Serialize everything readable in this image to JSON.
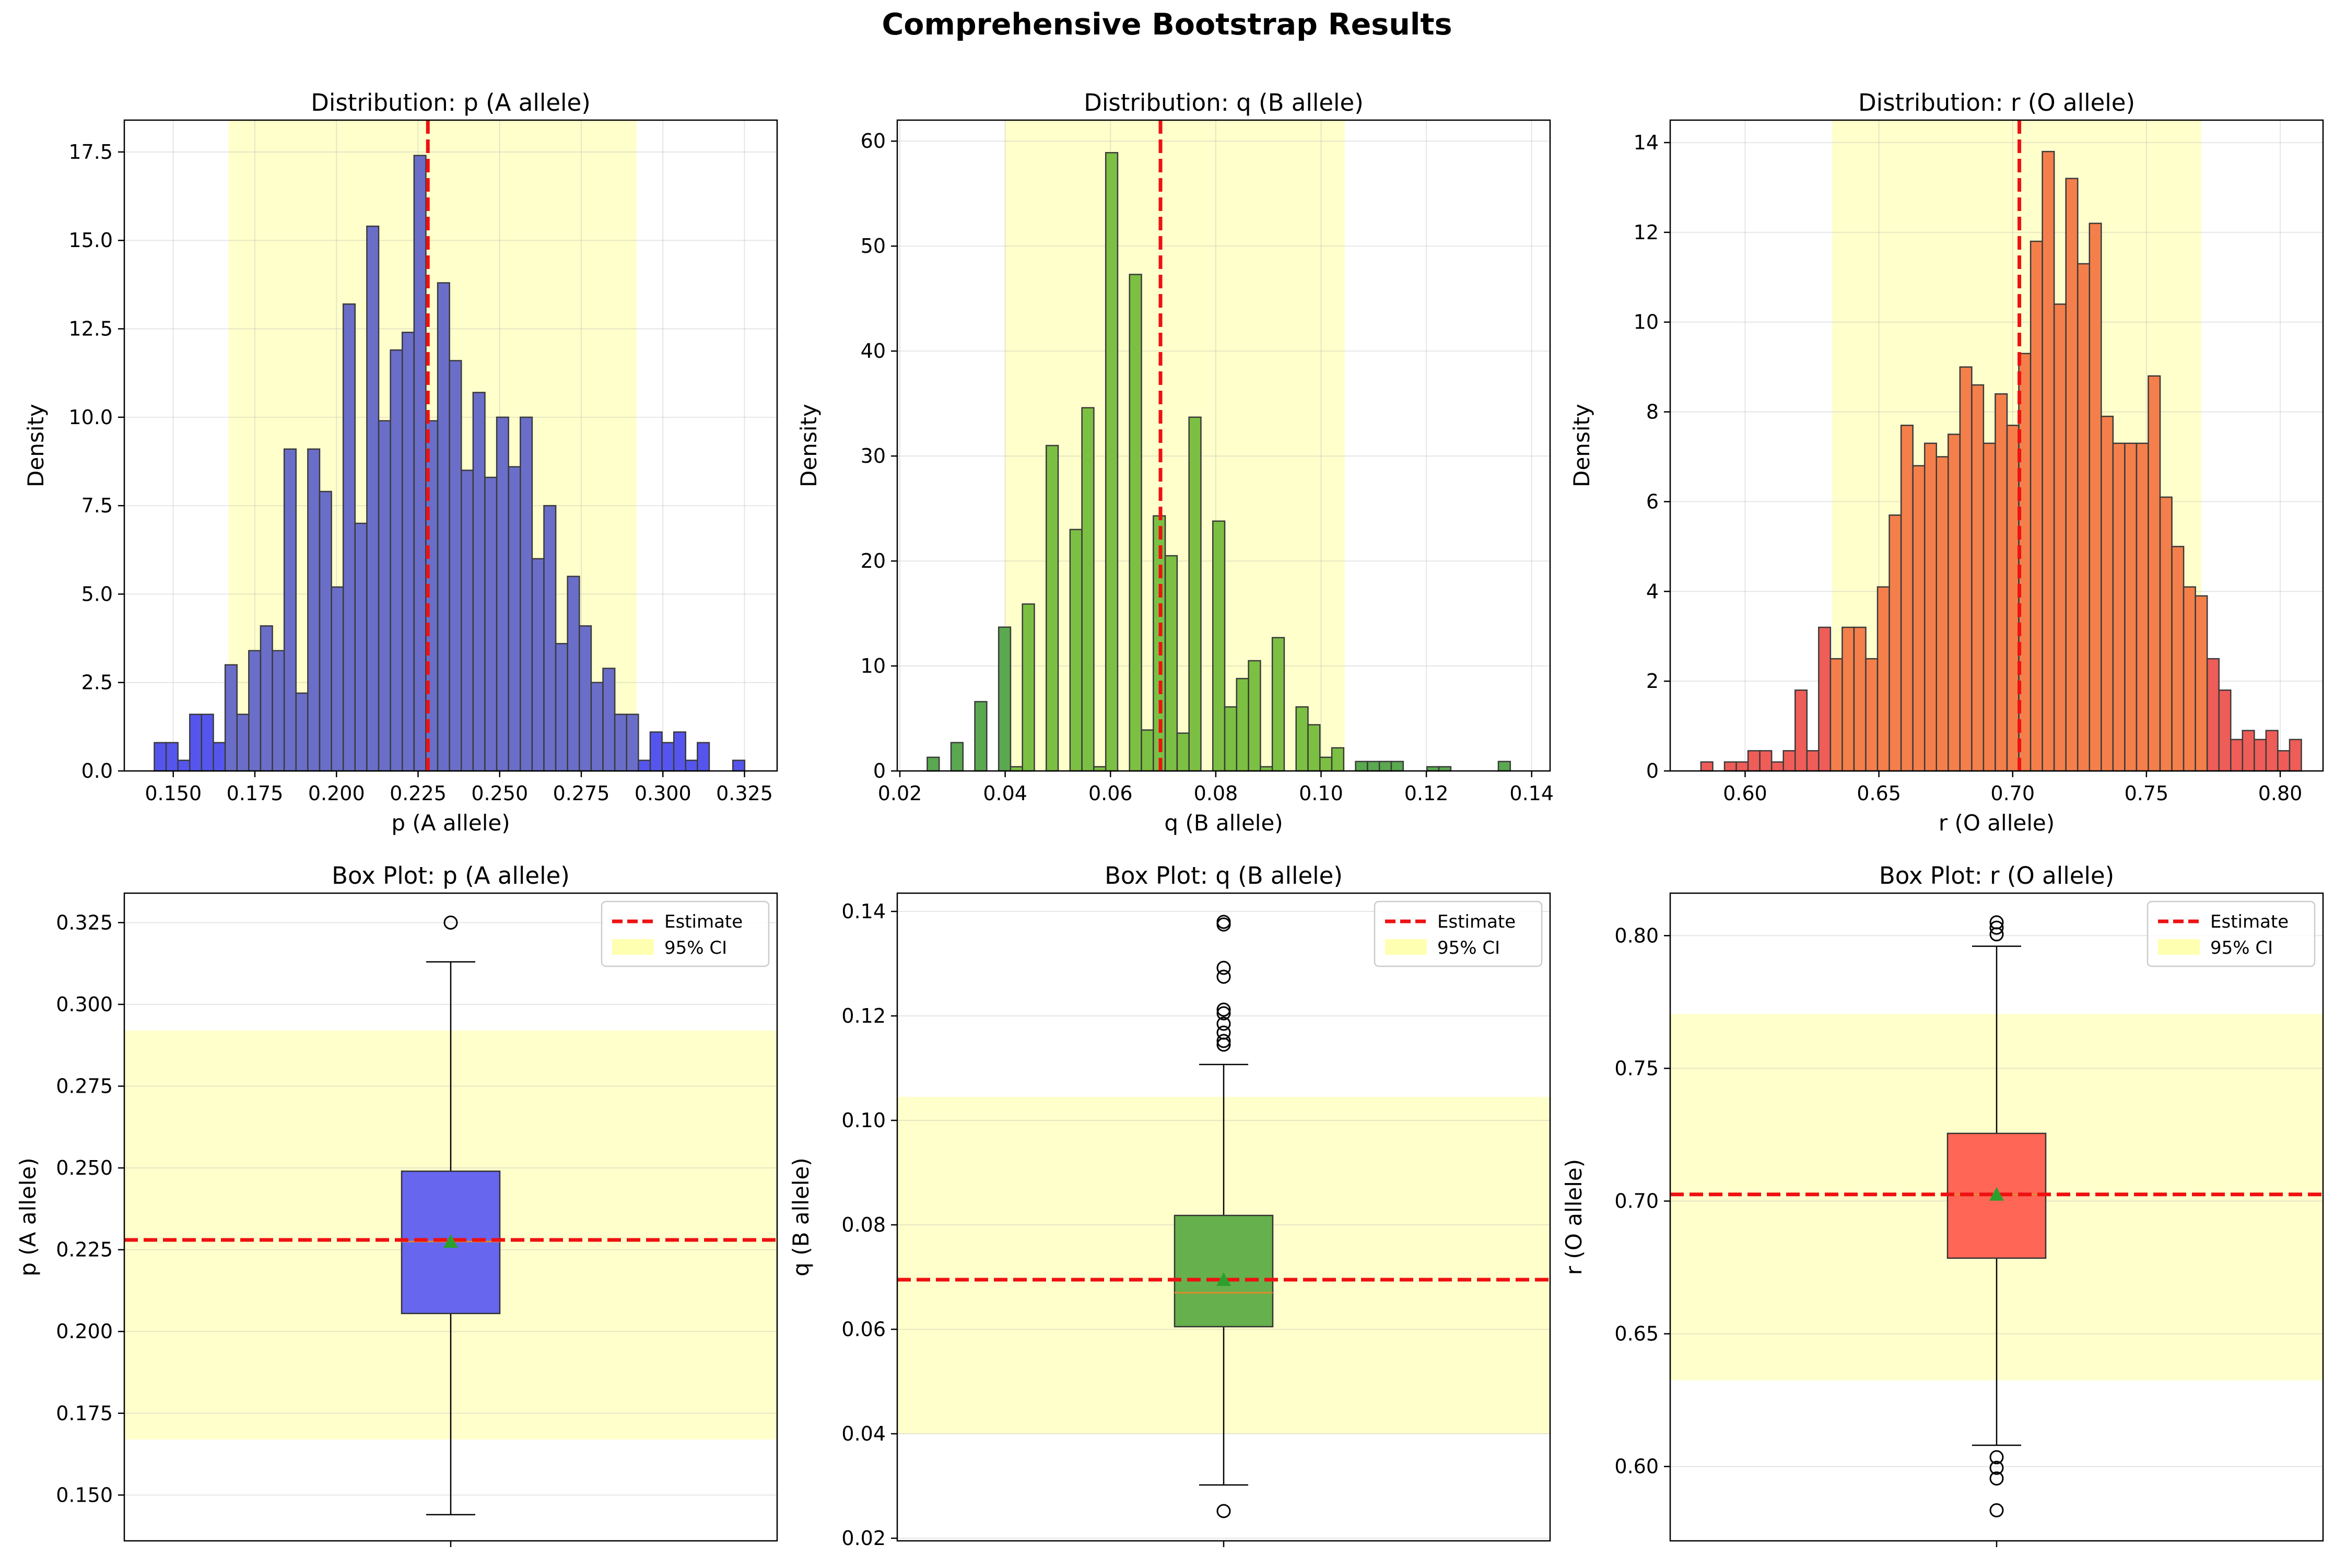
{
  "figure": {
    "title": "Comprehensive Bootstrap Results",
    "colors": {
      "estimate": "#ee1111",
      "ci": "#ffffaa"
    }
  },
  "chart_data": [
    {
      "type": "bar",
      "title": "Distribution: p (A allele)",
      "xlabel": "p (A allele)",
      "ylabel": "Density",
      "xlim": [
        0.135,
        0.335
      ],
      "ylim": [
        0,
        18.4
      ],
      "xticks": [
        "0.150",
        "0.175",
        "0.200",
        "0.225",
        "0.250",
        "0.275",
        "0.300",
        "0.325"
      ],
      "yticks": [
        "0.0",
        "2.5",
        "5.0",
        "7.5",
        "10.0",
        "12.5",
        "15.0",
        "17.5"
      ],
      "bin_start": 0.1442,
      "bin_width": 0.003617,
      "values": [
        0.8,
        0.8,
        0.3,
        1.6,
        1.6,
        0.8,
        3.0,
        1.6,
        3.4,
        4.1,
        3.4,
        9.1,
        2.2,
        9.1,
        7.9,
        5.2,
        13.2,
        7.0,
        15.4,
        9.9,
        11.9,
        12.4,
        17.4,
        9.9,
        13.8,
        11.6,
        8.5,
        10.7,
        8.3,
        10.0,
        8.6,
        10.0,
        6.0,
        7.5,
        3.6,
        5.5,
        4.1,
        2.5,
        2.9,
        1.6,
        1.6,
        0.3,
        1.1,
        0.8,
        1.1,
        0.3,
        0.8,
        0.0,
        0.0,
        0.3
      ],
      "estimate": 0.228,
      "ci": [
        0.167,
        0.292
      ],
      "bar_color": "#6a6ec9",
      "tail_color": "#5555ee",
      "grid": true
    },
    {
      "type": "bar",
      "title": "Distribution: q (B allele)",
      "xlabel": "q (B allele)",
      "ylabel": "Density",
      "xlim": [
        0.0195,
        0.1435
      ],
      "ylim": [
        0,
        62
      ],
      "xticks": [
        "0.02",
        "0.04",
        "0.06",
        "0.08",
        "0.10",
        "0.12",
        "0.14"
      ],
      "yticks": [
        "0",
        "10",
        "20",
        "30",
        "40",
        "50",
        "60"
      ],
      "bin_start": 0.0252,
      "bin_width": 0.00226,
      "values": [
        1.3,
        0.0,
        2.7,
        0.0,
        6.6,
        0.0,
        13.7,
        0.4,
        15.9,
        0.0,
        31.0,
        0.0,
        23.0,
        34.6,
        0.4,
        58.9,
        0.0,
        47.3,
        3.9,
        24.3,
        20.5,
        3.6,
        33.7,
        0.0,
        23.8,
        6.1,
        8.8,
        10.5,
        0.4,
        12.7,
        0.0,
        6.1,
        4.4,
        1.3,
        2.2,
        0.0,
        0.9,
        0.9,
        0.9,
        0.9,
        0.0,
        0.0,
        0.4,
        0.4,
        0.0,
        0.0,
        0.0,
        0.0,
        0.9,
        0.0
      ],
      "estimate": 0.0695,
      "ci": [
        0.04,
        0.1045
      ],
      "bar_color": "#7cc043",
      "tail_color": "#5aa850",
      "grid": true
    },
    {
      "type": "bar",
      "title": "Distribution: r (O allele)",
      "xlabel": "r (O allele)",
      "ylabel": "Density",
      "xlim": [
        0.572,
        0.816
      ],
      "ylim": [
        0,
        14.5
      ],
      "xticks": [
        "0.60",
        "0.65",
        "0.70",
        "0.75",
        "0.80"
      ],
      "yticks": [
        "0",
        "2",
        "4",
        "6",
        "8",
        "10",
        "12",
        "14"
      ],
      "bin_start": 0.5835,
      "bin_width": 0.0044,
      "values": [
        0.2,
        0.0,
        0.2,
        0.2,
        0.45,
        0.45,
        0.2,
        0.45,
        1.8,
        0.45,
        3.2,
        2.5,
        3.2,
        3.2,
        2.5,
        4.1,
        5.7,
        7.7,
        6.8,
        7.3,
        7.0,
        7.5,
        9.0,
        8.6,
        7.3,
        8.4,
        7.7,
        9.3,
        11.8,
        13.8,
        10.4,
        13.2,
        11.3,
        12.2,
        7.9,
        7.3,
        7.3,
        7.3,
        8.8,
        6.1,
        5.0,
        4.1,
        3.9,
        2.5,
        1.8,
        0.7,
        0.9,
        0.7,
        0.9,
        0.45,
        0.7
      ],
      "estimate": 0.7025,
      "ci": [
        0.6325,
        0.7705
      ],
      "bar_color": "#f47f4b",
      "tail_color": "#ef5d58",
      "grid": true
    },
    {
      "type": "box",
      "title": "Box Plot: p (A allele)",
      "ylabel": "p (A allele)",
      "ylim": [
        0.136,
        0.334
      ],
      "yticks": [
        "0.150",
        "0.175",
        "0.200",
        "0.225",
        "0.250",
        "0.275",
        "0.300",
        "0.325"
      ],
      "whisker_low": 0.144,
      "q1": 0.2055,
      "median": 0.2275,
      "q3": 0.249,
      "whisker_high": 0.313,
      "mean": 0.2275,
      "outliers": [
        0.325
      ],
      "estimate": 0.228,
      "ci": [
        0.167,
        0.292
      ],
      "box_color": "#6666ee",
      "legend": [
        "Estimate",
        "95% CI"
      ],
      "legend_loc": "upper right",
      "grid": true
    },
    {
      "type": "box",
      "title": "Box Plot: q (B allele)",
      "ylabel": "q (B allele)",
      "ylim": [
        0.0195,
        0.1435
      ],
      "yticks": [
        "0.02",
        "0.04",
        "0.06",
        "0.08",
        "0.10",
        "0.12",
        "0.14"
      ],
      "whisker_low": 0.0302,
      "q1": 0.0605,
      "median": 0.067,
      "q3": 0.0818,
      "whisker_high": 0.1107,
      "mean": 0.0695,
      "outliers": [
        0.0252,
        0.1145,
        0.1152,
        0.1168,
        0.1185,
        0.1205,
        0.1212,
        0.1275,
        0.1292,
        0.1375,
        0.138
      ],
      "estimate": 0.0695,
      "ci": [
        0.04,
        0.1045
      ],
      "box_color": "#66b04d",
      "legend": [
        "Estimate",
        "95% CI"
      ],
      "legend_loc": "upper right",
      "grid": true
    },
    {
      "type": "box",
      "title": "Box Plot: r (O allele)",
      "ylabel": "r (O allele)",
      "ylim": [
        0.572,
        0.816
      ],
      "yticks": [
        "0.60",
        "0.65",
        "0.70",
        "0.75",
        "0.80"
      ],
      "whisker_low": 0.608,
      "q1": 0.6785,
      "median": 0.7025,
      "q3": 0.7255,
      "whisker_high": 0.796,
      "mean": 0.7025,
      "outliers": [
        0.5835,
        0.5955,
        0.5995,
        0.6035,
        0.8005,
        0.803,
        0.805
      ],
      "estimate": 0.7025,
      "ci": [
        0.6325,
        0.7705
      ],
      "box_color": "#ff6655",
      "legend": [
        "Estimate",
        "95% CI"
      ],
      "legend_loc": "upper right",
      "grid": true
    }
  ]
}
